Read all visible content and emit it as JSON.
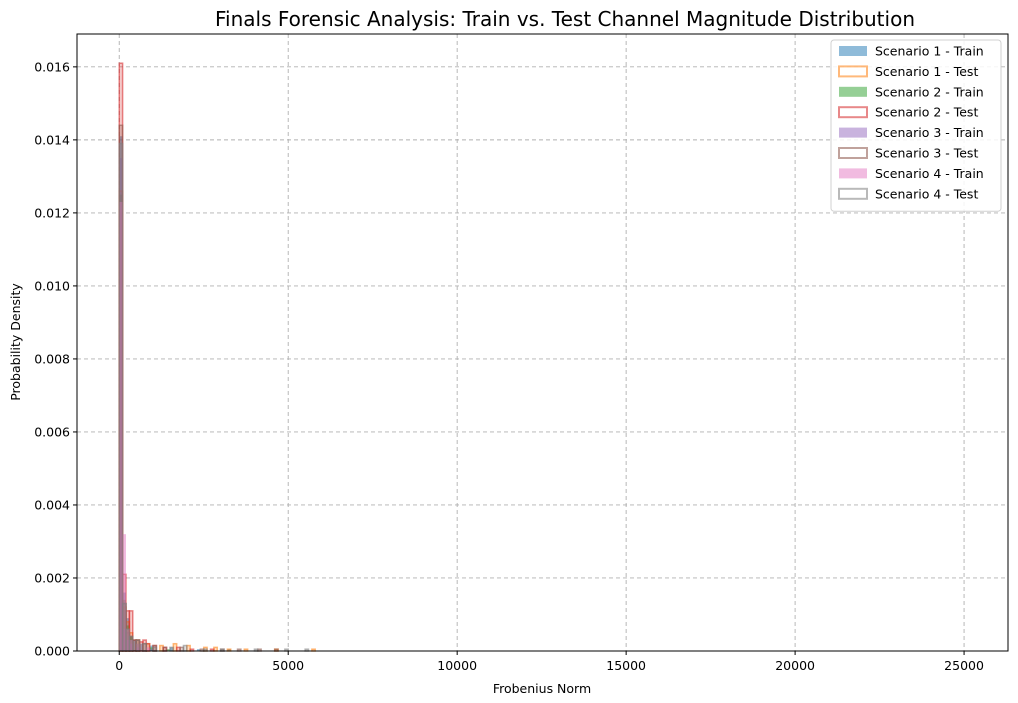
{
  "chart_data": {
    "type": "histogram",
    "title": "Finals Forensic Analysis: Train vs. Test Channel Magnitude Distribution",
    "xlabel": "Frobenius Norm",
    "ylabel": "Probability Density",
    "xlim": [
      -1250,
      26300
    ],
    "ylim": [
      0,
      0.0169
    ],
    "xticks": [
      0,
      5000,
      10000,
      15000,
      20000,
      25000
    ],
    "yticks": [
      0.0,
      0.002,
      0.004,
      0.006,
      0.008,
      0.01,
      0.012,
      0.014,
      0.016
    ],
    "grid": true,
    "legend_position": "top-right",
    "bin_width": 100,
    "series": [
      {
        "name": "Scenario 1 - Train",
        "style": "filled",
        "color": "#1f77b4",
        "bins": [
          [
            0,
            0.0141
          ],
          [
            100,
            0.0016
          ],
          [
            200,
            0.0009
          ],
          [
            300,
            0.0004
          ],
          [
            400,
            0.0003
          ],
          [
            600,
            0.0002
          ],
          [
            900,
            0.00015
          ],
          [
            1500,
            0.0001
          ],
          [
            2300,
            5e-05
          ],
          [
            3200,
            5e-05
          ]
        ]
      },
      {
        "name": "Scenario 1 - Test",
        "style": "outline",
        "color": "#ff7f0e",
        "bins": [
          [
            0,
            0.0126
          ],
          [
            100,
            0.0012
          ],
          [
            200,
            0.0008
          ],
          [
            300,
            0.0005
          ],
          [
            500,
            0.0003
          ],
          [
            800,
            0.0002
          ],
          [
            1200,
            0.00015
          ],
          [
            1600,
            0.0002
          ],
          [
            2000,
            0.00015
          ],
          [
            2500,
            0.0001
          ],
          [
            2800,
            0.0001
          ],
          [
            3200,
            5e-05
          ],
          [
            3700,
            5e-05
          ],
          [
            4600,
            5e-05
          ],
          [
            5700,
            5e-05
          ]
        ]
      },
      {
        "name": "Scenario 2 - Train",
        "style": "filled",
        "color": "#2ca02c",
        "bins": [
          [
            0,
            0.0125
          ],
          [
            100,
            0.0014
          ],
          [
            200,
            0.0007
          ],
          [
            300,
            0.0004
          ],
          [
            500,
            0.0002
          ],
          [
            900,
            0.0001
          ],
          [
            1400,
            5e-05
          ]
        ]
      },
      {
        "name": "Scenario 2 - Test",
        "style": "outline",
        "color": "#d62728",
        "bins": [
          [
            0,
            0.0161
          ],
          [
            100,
            0.0021
          ],
          [
            200,
            0.0011
          ],
          [
            300,
            0.0011
          ],
          [
            400,
            0.0003
          ],
          [
            500,
            0.0003
          ],
          [
            600,
            0.00025
          ],
          [
            700,
            0.0003
          ],
          [
            800,
            0.0002
          ],
          [
            1000,
            0.00015
          ],
          [
            1300,
            0.0001
          ],
          [
            1700,
            0.0001
          ],
          [
            2100,
            5e-05
          ],
          [
            2700,
            5e-05
          ]
        ]
      },
      {
        "name": "Scenario 3 - Train",
        "style": "filled",
        "color": "#9467bd",
        "bins": [
          [
            0,
            0.0135
          ],
          [
            100,
            0.0006
          ],
          [
            200,
            0.0003
          ],
          [
            300,
            0.0002
          ],
          [
            500,
            0.0001
          ],
          [
            900,
            5e-05
          ]
        ]
      },
      {
        "name": "Scenario 3 - Test",
        "style": "outline",
        "color": "#8c564b",
        "bins": [
          [
            0,
            0.0144
          ],
          [
            100,
            0.0013
          ],
          [
            200,
            0.0005
          ],
          [
            300,
            0.0004
          ],
          [
            400,
            0.0003
          ],
          [
            500,
            0.0003
          ],
          [
            700,
            0.0002
          ],
          [
            1000,
            0.00015
          ],
          [
            1300,
            0.0001
          ],
          [
            1800,
            0.0001
          ],
          [
            2400,
            5e-05
          ],
          [
            3000,
            5e-05
          ],
          [
            3500,
            5e-05
          ],
          [
            4100,
            5e-05
          ],
          [
            4600,
            5e-05
          ]
        ]
      },
      {
        "name": "Scenario 4 - Train",
        "style": "filled",
        "color": "#e377c2",
        "bins": [
          [
            0,
            0.0123
          ],
          [
            100,
            0.0032
          ],
          [
            200,
            0.0006
          ],
          [
            300,
            0.0003
          ],
          [
            500,
            0.0002
          ],
          [
            800,
            0.0001
          ]
        ]
      },
      {
        "name": "Scenario 4 - Test",
        "style": "outline",
        "color": "#7f7f7f",
        "bins": [
          [
            0,
            0.0139
          ],
          [
            100,
            0.0013
          ],
          [
            200,
            0.0006
          ],
          [
            300,
            0.0004
          ],
          [
            500,
            0.0003
          ],
          [
            700,
            0.0002
          ],
          [
            1000,
            0.0001
          ],
          [
            1500,
            0.0001
          ],
          [
            1900,
            0.00015
          ],
          [
            2500,
            5e-05
          ],
          [
            3000,
            5e-05
          ],
          [
            4000,
            5e-05
          ],
          [
            4900,
            5e-05
          ],
          [
            5500,
            5e-05
          ]
        ]
      }
    ]
  }
}
